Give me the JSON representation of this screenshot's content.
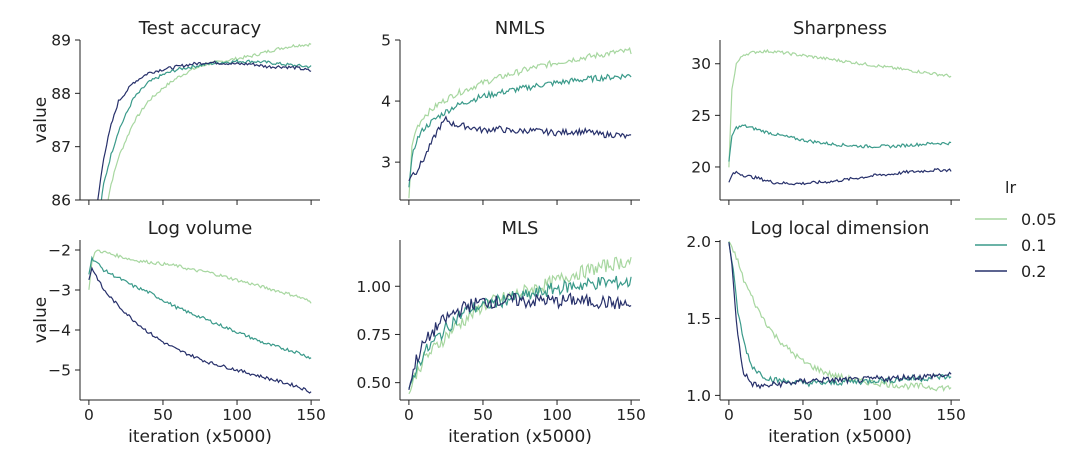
{
  "figure": {
    "legend": {
      "title": "lr",
      "placement": "center-right",
      "entries": [
        {
          "label": "0.05",
          "color": "#a7d7a0"
        },
        {
          "label": "0.1",
          "color": "#3a9a8a"
        },
        {
          "label": "0.2",
          "color": "#27306b"
        }
      ]
    }
  },
  "chart_data": [
    {
      "type": "line",
      "title": "Test accuracy",
      "xlabel": "",
      "ylabel": "value",
      "xlim": [
        -6,
        156
      ],
      "ylim": [
        86,
        89
      ],
      "xticks": [
        0,
        50,
        100,
        150
      ],
      "xtick_labels": [
        "",
        "",
        "",
        ""
      ],
      "yticks": [
        86,
        87,
        88,
        89
      ],
      "ytick_labels": [
        "86",
        "87",
        "88",
        "89"
      ],
      "noise": 0.03,
      "series": [
        {
          "name": "0.05",
          "x": [
            10,
            15,
            20,
            30,
            40,
            50,
            60,
            70,
            80,
            90,
            100,
            110,
            120,
            130,
            140,
            150
          ],
          "values": [
            85.6,
            86.3,
            86.8,
            87.45,
            87.85,
            88.1,
            88.3,
            88.45,
            88.55,
            88.6,
            88.65,
            88.7,
            88.78,
            88.85,
            88.9,
            88.92
          ]
        },
        {
          "name": "0.1",
          "x": [
            7,
            10,
            15,
            20,
            30,
            40,
            50,
            60,
            70,
            80,
            90,
            100,
            110,
            120,
            130,
            140,
            150
          ],
          "values": [
            85.7,
            86.3,
            86.85,
            87.3,
            87.9,
            88.2,
            88.35,
            88.45,
            88.5,
            88.55,
            88.58,
            88.6,
            88.6,
            88.58,
            88.55,
            88.52,
            88.5
          ]
        },
        {
          "name": "0.2",
          "x": [
            5,
            8,
            10,
            15,
            20,
            30,
            40,
            50,
            60,
            70,
            80,
            90,
            100,
            110,
            120,
            130,
            140,
            150
          ],
          "values": [
            85.8,
            86.4,
            86.8,
            87.4,
            87.85,
            88.2,
            88.38,
            88.45,
            88.5,
            88.55,
            88.58,
            88.57,
            88.55,
            88.55,
            88.5,
            88.5,
            88.48,
            88.42
          ]
        }
      ]
    },
    {
      "type": "line",
      "title": "NMLS",
      "xlabel": "",
      "ylabel": "",
      "xlim": [
        -6,
        156
      ],
      "ylim": [
        2.38,
        5.0
      ],
      "xticks": [
        0,
        50,
        100,
        150
      ],
      "xtick_labels": [
        "",
        "",
        "",
        ""
      ],
      "yticks": [
        3,
        4,
        5
      ],
      "ytick_labels": [
        "3",
        "4",
        "5"
      ],
      "noise": 0.05,
      "series": [
        {
          "name": "0.05",
          "x": [
            0,
            2,
            5,
            10,
            20,
            30,
            40,
            50,
            60,
            70,
            80,
            90,
            100,
            110,
            120,
            130,
            140,
            150
          ],
          "values": [
            2.4,
            3.25,
            3.55,
            3.75,
            3.95,
            4.1,
            4.2,
            4.3,
            4.38,
            4.45,
            4.52,
            4.58,
            4.63,
            4.68,
            4.72,
            4.76,
            4.8,
            4.82
          ]
        },
        {
          "name": "0.1",
          "x": [
            0,
            2,
            5,
            10,
            20,
            30,
            40,
            50,
            60,
            70,
            80,
            90,
            100,
            110,
            120,
            130,
            140,
            150
          ],
          "values": [
            2.6,
            3.05,
            3.35,
            3.55,
            3.75,
            3.9,
            4.0,
            4.08,
            4.13,
            4.18,
            4.22,
            4.27,
            4.3,
            4.33,
            4.36,
            4.38,
            4.4,
            4.42
          ]
        },
        {
          "name": "0.2",
          "x": [
            0,
            2,
            5,
            10,
            15,
            20,
            25,
            30,
            40,
            50,
            60,
            70,
            80,
            90,
            100,
            110,
            120,
            130,
            140,
            150
          ],
          "values": [
            2.7,
            2.8,
            2.85,
            3.05,
            3.3,
            3.55,
            3.7,
            3.62,
            3.58,
            3.52,
            3.55,
            3.5,
            3.52,
            3.5,
            3.48,
            3.5,
            3.5,
            3.45,
            3.45,
            3.4
          ]
        }
      ]
    },
    {
      "type": "line",
      "title": "Sharpness",
      "xlabel": "",
      "ylabel": "",
      "xlim": [
        -6,
        156
      ],
      "ylim": [
        16.8,
        32.3
      ],
      "xticks": [
        0,
        50,
        100,
        150
      ],
      "xtick_labels": [
        "",
        "",
        "",
        ""
      ],
      "yticks": [
        20,
        25,
        30
      ],
      "ytick_labels": [
        "20",
        "25",
        "30"
      ],
      "noise": 0.15,
      "series": [
        {
          "name": "0.05",
          "x": [
            0,
            2,
            5,
            10,
            20,
            30,
            40,
            50,
            60,
            70,
            80,
            90,
            100,
            110,
            120,
            130,
            140,
            150
          ],
          "values": [
            20.0,
            27.5,
            30.0,
            30.9,
            31.2,
            31.2,
            31.0,
            30.8,
            30.6,
            30.4,
            30.2,
            30.0,
            29.8,
            29.6,
            29.4,
            29.2,
            29.0,
            28.8
          ]
        },
        {
          "name": "0.1",
          "x": [
            0,
            2,
            5,
            10,
            20,
            30,
            40,
            50,
            60,
            70,
            80,
            90,
            100,
            110,
            120,
            130,
            140,
            150
          ],
          "values": [
            20.5,
            23.0,
            23.8,
            24.0,
            23.6,
            23.2,
            22.9,
            22.6,
            22.4,
            22.2,
            22.1,
            22.0,
            22.0,
            22.0,
            22.1,
            22.2,
            22.3,
            22.3
          ]
        },
        {
          "name": "0.2",
          "x": [
            0,
            2,
            5,
            10,
            20,
            30,
            40,
            50,
            60,
            70,
            80,
            90,
            100,
            110,
            120,
            130,
            140,
            150
          ],
          "values": [
            18.5,
            19.2,
            19.5,
            19.2,
            18.9,
            18.5,
            18.4,
            18.4,
            18.5,
            18.6,
            18.8,
            19.0,
            19.2,
            19.3,
            19.5,
            19.6,
            19.7,
            19.7
          ]
        }
      ]
    },
    {
      "type": "line",
      "title": "Log volume",
      "xlabel": "iteration (x5000)",
      "ylabel": "value",
      "xlim": [
        -6,
        156
      ],
      "ylim": [
        -5.75,
        -1.75
      ],
      "xticks": [
        0,
        50,
        100,
        150
      ],
      "xtick_labels": [
        "0",
        "50",
        "100",
        "150"
      ],
      "yticks": [
        -5,
        -4,
        -3,
        -2
      ],
      "ytick_labels": [
        "−5",
        "−4",
        "−3",
        "−2"
      ],
      "noise": 0.04,
      "series": [
        {
          "name": "0.05",
          "x": [
            0,
            2,
            5,
            10,
            20,
            30,
            40,
            50,
            60,
            70,
            80,
            90,
            100,
            110,
            120,
            130,
            140,
            150
          ],
          "values": [
            -3.0,
            -2.3,
            -2.0,
            -2.05,
            -2.15,
            -2.25,
            -2.3,
            -2.35,
            -2.4,
            -2.5,
            -2.55,
            -2.65,
            -2.75,
            -2.85,
            -2.95,
            -3.05,
            -3.15,
            -3.3
          ]
        },
        {
          "name": "0.1",
          "x": [
            0,
            2,
            5,
            10,
            20,
            30,
            40,
            50,
            60,
            70,
            80,
            90,
            100,
            110,
            120,
            130,
            140,
            150
          ],
          "values": [
            -2.6,
            -2.2,
            -2.3,
            -2.5,
            -2.7,
            -2.9,
            -3.05,
            -3.25,
            -3.45,
            -3.6,
            -3.75,
            -3.9,
            -4.05,
            -4.2,
            -4.35,
            -4.45,
            -4.55,
            -4.7
          ]
        },
        {
          "name": "0.2",
          "x": [
            0,
            2,
            5,
            10,
            20,
            30,
            40,
            50,
            60,
            70,
            80,
            90,
            100,
            110,
            120,
            130,
            140,
            150
          ],
          "values": [
            -2.75,
            -2.45,
            -2.65,
            -3.0,
            -3.4,
            -3.75,
            -4.05,
            -4.3,
            -4.5,
            -4.65,
            -4.8,
            -4.9,
            -5.0,
            -5.1,
            -5.2,
            -5.3,
            -5.4,
            -5.55
          ]
        }
      ]
    },
    {
      "type": "line",
      "title": "MLS",
      "xlabel": "iteration (x5000)",
      "ylabel": "",
      "xlim": [
        -6,
        156
      ],
      "ylim": [
        0.41,
        1.24
      ],
      "xticks": [
        0,
        50,
        100,
        150
      ],
      "xtick_labels": [
        "0",
        "50",
        "100",
        "150"
      ],
      "yticks": [
        0.5,
        0.75,
        1.0
      ],
      "ytick_labels": [
        "0.50",
        "0.75",
        "1.00"
      ],
      "noise": 0.035,
      "series": [
        {
          "name": "0.05",
          "x": [
            0,
            5,
            10,
            20,
            30,
            40,
            50,
            60,
            70,
            80,
            90,
            100,
            110,
            120,
            130,
            140,
            150
          ],
          "values": [
            0.44,
            0.55,
            0.62,
            0.7,
            0.78,
            0.84,
            0.9,
            0.93,
            0.95,
            0.98,
            1.0,
            1.03,
            1.06,
            1.08,
            1.1,
            1.12,
            1.13
          ]
        },
        {
          "name": "0.1",
          "x": [
            0,
            5,
            10,
            20,
            30,
            40,
            50,
            60,
            70,
            80,
            90,
            100,
            110,
            120,
            130,
            140,
            150
          ],
          "values": [
            0.46,
            0.58,
            0.65,
            0.74,
            0.82,
            0.88,
            0.9,
            0.92,
            0.94,
            0.95,
            0.97,
            0.99,
            1.0,
            1.01,
            1.02,
            1.02,
            1.02
          ]
        },
        {
          "name": "0.2",
          "x": [
            0,
            5,
            10,
            20,
            30,
            40,
            50,
            60,
            70,
            80,
            90,
            100,
            110,
            120,
            130,
            140,
            150
          ],
          "values": [
            0.47,
            0.62,
            0.7,
            0.8,
            0.86,
            0.9,
            0.92,
            0.92,
            0.93,
            0.92,
            0.93,
            0.92,
            0.93,
            0.92,
            0.92,
            0.91,
            0.9
          ]
        }
      ]
    },
    {
      "type": "line",
      "title": "Log local dimension",
      "xlabel": "iteration (x5000)",
      "ylabel": "",
      "xlim": [
        -6,
        156
      ],
      "ylim": [
        0.97,
        2.01
      ],
      "xticks": [
        0,
        50,
        100,
        150
      ],
      "xtick_labels": [
        "0",
        "50",
        "100",
        "150"
      ],
      "yticks": [
        1.0,
        1.5,
        2.0
      ],
      "ytick_labels": [
        "1.0",
        "1.5",
        "2.0"
      ],
      "noise": 0.02,
      "series": [
        {
          "name": "0.05",
          "x": [
            0,
            5,
            10,
            20,
            30,
            40,
            50,
            60,
            70,
            80,
            90,
            100,
            110,
            120,
            130,
            140,
            150
          ],
          "values": [
            2.0,
            1.9,
            1.75,
            1.55,
            1.4,
            1.3,
            1.22,
            1.17,
            1.13,
            1.11,
            1.09,
            1.08,
            1.07,
            1.06,
            1.06,
            1.05,
            1.05
          ]
        },
        {
          "name": "0.1",
          "x": [
            0,
            3,
            6,
            10,
            15,
            20,
            25,
            30,
            40,
            50,
            60,
            70,
            80,
            90,
            100,
            110,
            120,
            130,
            140,
            150
          ],
          "values": [
            2.0,
            1.8,
            1.55,
            1.35,
            1.2,
            1.15,
            1.12,
            1.1,
            1.09,
            1.08,
            1.08,
            1.08,
            1.09,
            1.09,
            1.1,
            1.1,
            1.11,
            1.11,
            1.12,
            1.12
          ]
        },
        {
          "name": "0.2",
          "x": [
            0,
            2,
            4,
            6,
            8,
            10,
            15,
            20,
            25,
            30,
            40,
            50,
            60,
            70,
            80,
            90,
            100,
            110,
            120,
            130,
            140,
            150
          ],
          "values": [
            2.0,
            1.85,
            1.6,
            1.4,
            1.25,
            1.15,
            1.08,
            1.06,
            1.06,
            1.07,
            1.08,
            1.09,
            1.1,
            1.1,
            1.1,
            1.1,
            1.11,
            1.11,
            1.12,
            1.12,
            1.13,
            1.13
          ]
        }
      ]
    }
  ]
}
